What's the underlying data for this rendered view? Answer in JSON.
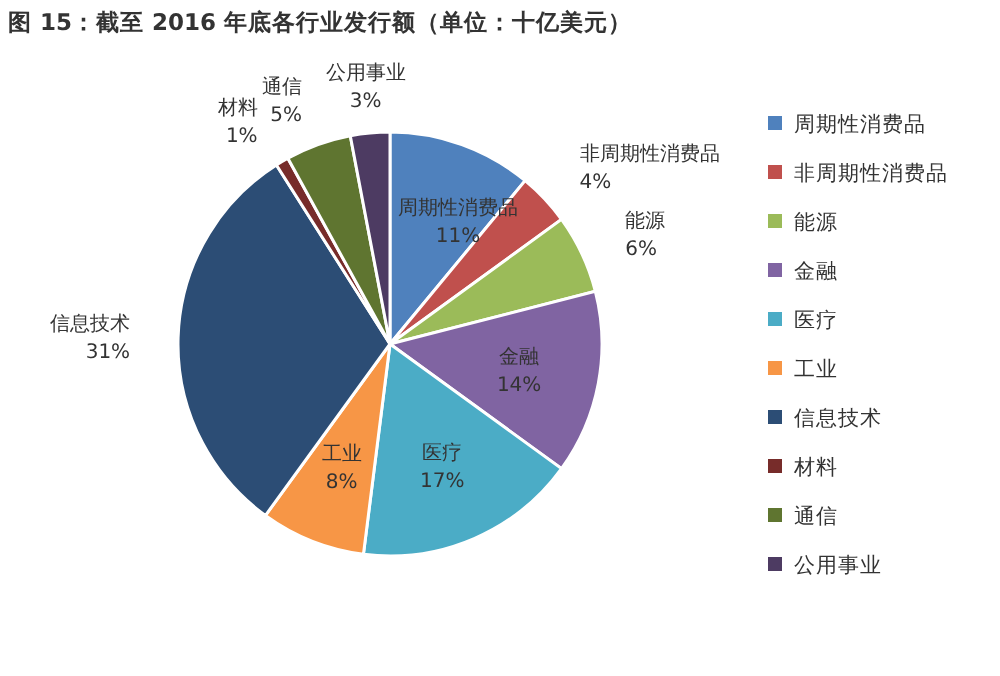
{
  "chart_data": {
    "type": "pie",
    "title": "图 15：截至 2016 年底各行业发行额（单位：十亿美元）",
    "categories": [
      "周期性消费品",
      "非周期性消费品",
      "能源",
      "金融",
      "医疗",
      "工业",
      "信息技术",
      "材料",
      "通信",
      "公用事业"
    ],
    "values": [
      11,
      4,
      6,
      14,
      17,
      8,
      31,
      1,
      5,
      3
    ],
    "colors": [
      "#4f81bd",
      "#c0504d",
      "#9bbb59",
      "#8064a2",
      "#4bacc6",
      "#f79646",
      "#2c4d75",
      "#772c2a",
      "#5f7530",
      "#4d3b62"
    ],
    "value_labels": [
      "11%",
      "4%",
      "6%",
      "14%",
      "17%",
      "8%",
      "31%",
      "1%",
      "5%",
      "3%"
    ],
    "legend": "right"
  }
}
